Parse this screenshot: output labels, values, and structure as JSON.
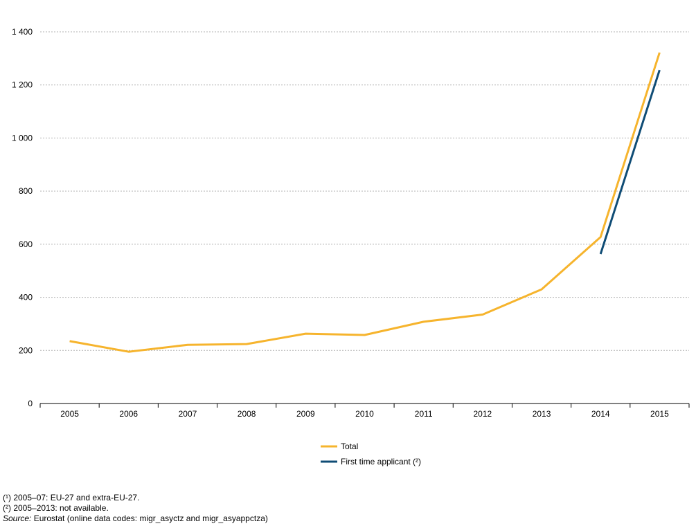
{
  "chart_data": {
    "type": "line",
    "title": "",
    "xlabel": "",
    "ylabel": "",
    "categories": [
      "2005",
      "2006",
      "2007",
      "2008",
      "2009",
      "2010",
      "2011",
      "2012",
      "2013",
      "2014",
      "2015"
    ],
    "ylim": [
      0,
      1400
    ],
    "yticks": [
      0,
      200,
      400,
      600,
      800,
      1000,
      1200,
      1400
    ],
    "ytick_labels": [
      "0",
      "200",
      "400",
      "600",
      "800",
      "1 000",
      "1 200",
      "1 400"
    ],
    "grid": true,
    "legend_position": "bottom-center",
    "series": [
      {
        "name": "Total",
        "color": "#f6b42d",
        "values": [
          235,
          195,
          221,
          224,
          263,
          258,
          308,
          335,
          430,
          627,
          1322
        ]
      },
      {
        "name": "First time applicant (²)",
        "color": "#0f4c75",
        "values": [
          null,
          null,
          null,
          null,
          null,
          null,
          null,
          null,
          null,
          563,
          1256
        ]
      }
    ]
  },
  "notes": {
    "note1": "(¹) 2005–07: EU-27 and extra-EU-27.",
    "note2": "(²) 2005–2013: not available.",
    "source_label": "Source:",
    "source_text": " Eurostat (online data codes: migr_asyctz and migr_asyappctza)"
  }
}
